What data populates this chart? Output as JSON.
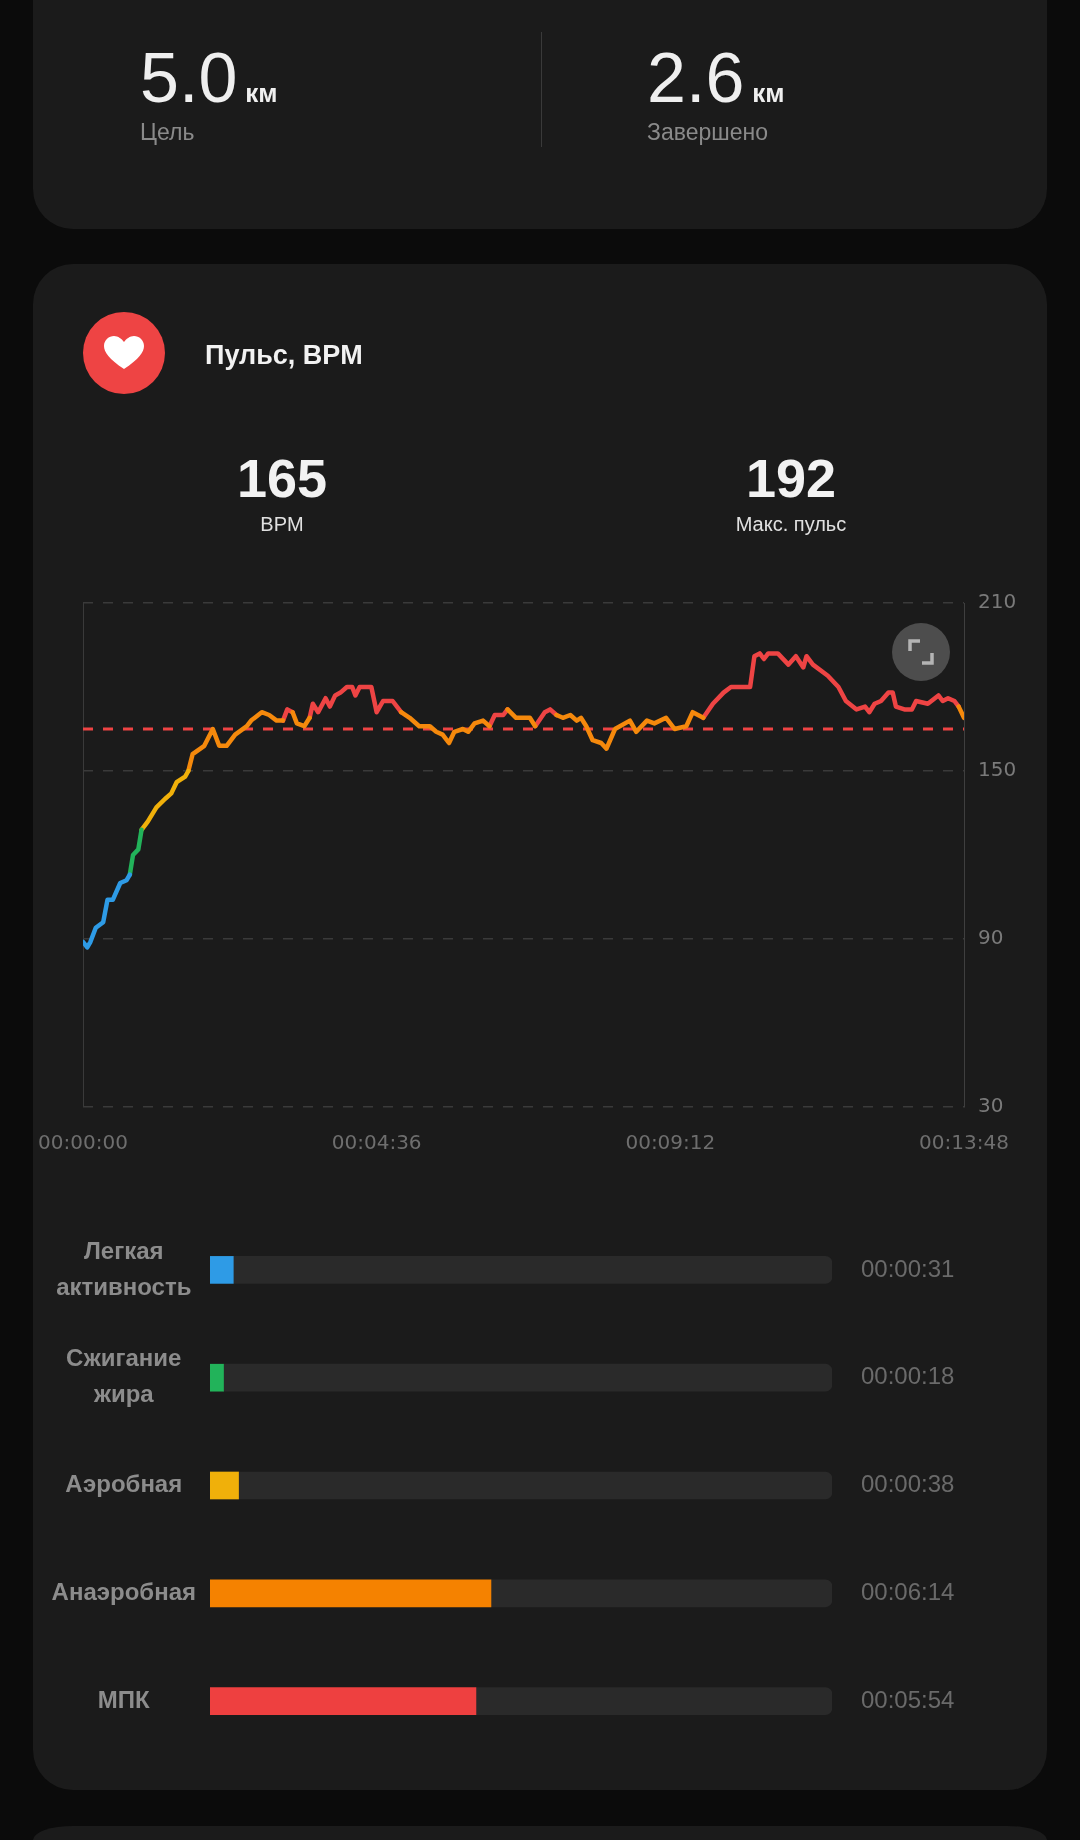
{
  "chart_data": [
    {
      "type": "other",
      "annotations": [
        "5.0",
        "км",
        "Цель",
        "2.6",
        "км",
        "Завершено"
      ]
    },
    {
      "type": "line",
      "title": "Пульс, BPM",
      "annotations": [
        "165",
        "BPM",
        "192",
        "Макс. пульс"
      ],
      "x": [
        0,
        4,
        7,
        12,
        19,
        23,
        28,
        35,
        41,
        44,
        47,
        52,
        55,
        61,
        69,
        77,
        83,
        88,
        96,
        99,
        103,
        114,
        122,
        128,
        135,
        143,
        154,
        158,
        168,
        175,
        182,
        188,
        192,
        197,
        201,
        208,
        213,
        216,
        221,
        228,
        232,
        237,
        242,
        248,
        253,
        256,
        260,
        265,
        271,
        276,
        282,
        291,
        299,
        307,
        316,
        326,
        332,
        338,
        344,
        349,
        357,
        362,
        368,
        376,
        382,
        387,
        395,
        399,
        407,
        420,
        425,
        434,
        439,
        445,
        451,
        458,
        464,
        468,
        473,
        479,
        487,
        492,
        500,
        514,
        520,
        530,
        537,
        548,
        556,
        567,
        573,
        583,
        592,
        602,
        609,
        614,
        627,
        631,
        636,
        640,
        644,
        653,
        663,
        670,
        677,
        680,
        686,
        700,
        710,
        717,
        727,
        735,
        739,
        744,
        750,
        757,
        761,
        764,
        772,
        779,
        783,
        794,
        804,
        808,
        813,
        819,
        823,
        828
      ],
      "series": [
        {
          "color": "#2e9be6",
          "values": [
            89,
            87,
            89,
            94,
            96,
            104,
            104,
            110,
            111,
            113,
            null,
            null,
            null,
            null,
            null,
            null,
            null,
            null,
            null,
            null,
            null,
            null,
            null,
            null,
            null,
            null,
            null,
            null,
            null,
            null,
            null,
            null,
            null,
            null,
            null,
            null,
            null,
            null,
            null,
            null,
            null,
            null,
            null,
            null,
            null,
            null,
            null,
            null,
            null,
            null,
            null,
            null,
            null,
            null,
            null,
            null,
            null,
            null,
            null,
            null,
            null,
            null,
            null,
            null,
            null,
            null,
            null,
            null,
            null,
            null,
            null,
            null,
            null,
            null,
            null,
            null,
            null,
            null,
            null,
            null,
            null,
            null,
            null,
            null,
            null,
            null,
            null,
            null,
            null,
            null,
            null,
            null,
            null,
            null,
            null,
            null,
            null,
            null,
            null,
            null,
            null,
            null,
            null,
            null,
            null,
            null,
            null,
            null,
            null,
            null,
            null,
            null,
            null,
            null,
            null,
            null,
            null,
            null,
            null,
            null,
            null,
            null,
            null,
            null,
            null,
            null,
            null,
            null
          ]
        },
        {
          "color": "#22b35a",
          "values": [
            null,
            null,
            null,
            null,
            null,
            null,
            null,
            null,
            null,
            113,
            120,
            122,
            129,
            null,
            null,
            null,
            null,
            null,
            null,
            null,
            null,
            null,
            null,
            null,
            null,
            null,
            null,
            null,
            null,
            null,
            null,
            null,
            null,
            null,
            null,
            null,
            null,
            null,
            null,
            null,
            null,
            null,
            null,
            null,
            null,
            null,
            null,
            null,
            null,
            null,
            null,
            null,
            null,
            null,
            null,
            null,
            null,
            null,
            null,
            null,
            null,
            null,
            null,
            null,
            null,
            null,
            null,
            null,
            null,
            null,
            null,
            null,
            null,
            null,
            null,
            null,
            null,
            null,
            null,
            null,
            null,
            null,
            null,
            null,
            null,
            null,
            null,
            null,
            null,
            null,
            null,
            null,
            null,
            null,
            null,
            null,
            null,
            null,
            null,
            null,
            null,
            null,
            null,
            null,
            null,
            null,
            null,
            null,
            null,
            null,
            null,
            null,
            null,
            null,
            null,
            null,
            null,
            null,
            null,
            null,
            null,
            null,
            null,
            null,
            null,
            null,
            null,
            null
          ]
        },
        {
          "color": "#f0b00a",
          "values": [
            null,
            null,
            null,
            null,
            null,
            null,
            null,
            null,
            null,
            null,
            null,
            null,
            129,
            132,
            137,
            140,
            142,
            146,
            148,
            150,
            null,
            null,
            null,
            null,
            null,
            null,
            null,
            null,
            null,
            null,
            null,
            null,
            null,
            null,
            null,
            null,
            null,
            null,
            null,
            null,
            null,
            null,
            null,
            null,
            null,
            null,
            null,
            null,
            null,
            null,
            null,
            null,
            null,
            null,
            null,
            null,
            null,
            null,
            null,
            null,
            null,
            null,
            null,
            null,
            null,
            null,
            null,
            null,
            null,
            null,
            null,
            null,
            null,
            null,
            null,
            null,
            null,
            null,
            null,
            null,
            null,
            null,
            null,
            null,
            null,
            null,
            null,
            null,
            null,
            null,
            null,
            null,
            null,
            null,
            null,
            null,
            null,
            null,
            null,
            null,
            null,
            null,
            null,
            null,
            null,
            null,
            null,
            null,
            null,
            null,
            null,
            null,
            null,
            null,
            null,
            null,
            null,
            null,
            null,
            null,
            null,
            null,
            null,
            null,
            null,
            null,
            null,
            null
          ]
        },
        {
          "color": "#f5890c",
          "values": [
            null,
            null,
            null,
            null,
            null,
            null,
            null,
            null,
            null,
            null,
            null,
            null,
            null,
            null,
            null,
            null,
            null,
            null,
            null,
            150,
            156,
            159,
            165,
            159,
            159,
            163,
            166,
            168,
            171,
            170,
            168,
            168,
            null,
            171,
            167,
            166,
            169,
            null,
            null,
            null,
            null,
            null,
            null,
            null,
            null,
            null,
            null,
            null,
            null,
            null,
            null,
            null,
            171,
            169,
            166,
            166,
            164,
            163,
            160,
            164,
            165,
            164,
            167,
            168,
            166,
            null,
            null,
            172,
            169,
            169,
            166,
            null,
            null,
            170,
            169,
            170,
            168,
            169,
            166,
            161,
            160,
            158,
            165,
            168,
            164,
            168,
            167,
            169,
            165,
            166,
            171,
            169,
            null,
            null,
            null,
            null,
            null,
            null,
            null,
            null,
            null,
            null,
            null,
            null,
            null,
            null,
            null,
            null,
            null,
            null,
            null,
            null,
            null,
            null,
            null,
            null,
            null,
            null,
            null,
            null,
            null,
            null,
            null,
            null,
            null,
            null,
            173,
            169
          ]
        },
        {
          "color": "#ee4444",
          "values": [
            null,
            null,
            null,
            null,
            null,
            null,
            null,
            null,
            null,
            null,
            null,
            null,
            null,
            null,
            null,
            null,
            null,
            null,
            null,
            null,
            null,
            null,
            null,
            null,
            null,
            null,
            null,
            null,
            null,
            null,
            null,
            168,
            172,
            171,
            null,
            null,
            169,
            174,
            171,
            176,
            173,
            177,
            178,
            180,
            180,
            177,
            180,
            180,
            180,
            171,
            175,
            175,
            171,
            null,
            null,
            null,
            null,
            null,
            null,
            null,
            null,
            null,
            null,
            null,
            166,
            170,
            170,
            172,
            null,
            null,
            166,
            171,
            172,
            170,
            null,
            null,
            null,
            null,
            null,
            null,
            null,
            null,
            null,
            null,
            null,
            null,
            null,
            null,
            null,
            null,
            null,
            169,
            174,
            178,
            180,
            180,
            180,
            191,
            192,
            190,
            192,
            192,
            188,
            191,
            187,
            191,
            188,
            184,
            180,
            175,
            172,
            173,
            171,
            174,
            175,
            178,
            178,
            173,
            172,
            172,
            175,
            174,
            177,
            175,
            176,
            175,
            173,
            null
          ]
        }
      ],
      "xlim": [
        0,
        828
      ],
      "xticks": [
        {
          "value": 0,
          "label": "00:00:00"
        },
        {
          "value": 276,
          "label": "00:04:36"
        },
        {
          "value": 552,
          "label": "00:09:12"
        },
        {
          "value": 828,
          "label": "00:13:48"
        }
      ],
      "ylim": [
        30,
        210
      ],
      "yticks": [
        30,
        90,
        150,
        210
      ],
      "grid": "y",
      "ref_lines": [
        {
          "axis": "y",
          "value": 165,
          "color": "#ee4444",
          "line_style": "dashed"
        }
      ]
    },
    {
      "type": "bar",
      "orientation": "horizontal",
      "stacked": true,
      "categories": [
        "Легкая активность",
        "Сжигание жира",
        "Аэробная",
        "Анаэробная",
        "МПК"
      ],
      "series": [
        {
          "colors": [
            "#2e9be6",
            "#22b35a",
            "#f0b00a",
            "#f58200",
            "#ee4040"
          ],
          "values": [
            31,
            18,
            38,
            374,
            354
          ],
          "value_labels": [
            "00:00:31",
            "00:00:18",
            "00:00:38",
            "00:06:14",
            "00:05:54"
          ]
        },
        {
          "color": "#2a2a2a",
          "values": [
            797,
            810,
            790,
            454,
            474
          ]
        }
      ],
      "tick_labels": "y"
    }
  ]
}
